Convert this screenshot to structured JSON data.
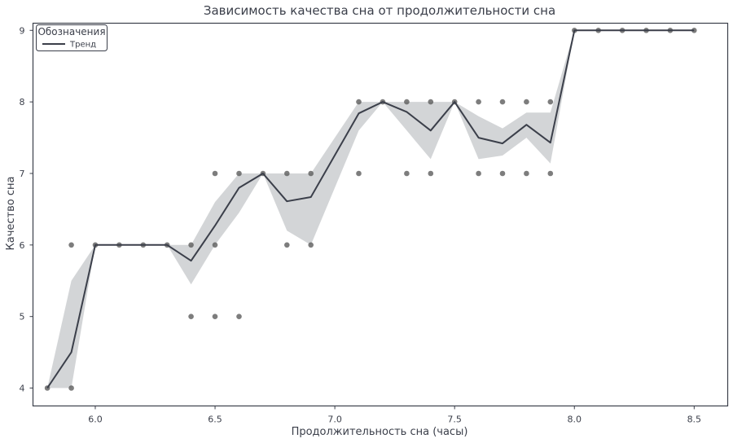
{
  "chart_data": {
    "type": "line",
    "title": "Зависимость качества сна от продолжительности сна",
    "xlabel": "Продолжительность сна (часы)",
    "ylabel": "Качество сна",
    "xlim": [
      5.74,
      8.64
    ],
    "ylim": [
      3.75,
      9.1
    ],
    "xticks": [
      6.0,
      6.5,
      7.0,
      7.5,
      8.0,
      8.5
    ],
    "yticks": [
      4,
      5,
      6,
      7,
      8,
      9
    ],
    "xtick_labels": [
      "6.0",
      "6.5",
      "7.0",
      "7.5",
      "8.0",
      "8.5"
    ],
    "ytick_labels": [
      "4",
      "5",
      "6",
      "7",
      "8",
      "9"
    ],
    "grid": false,
    "legend": {
      "title": "Обозначения",
      "position": "top-left",
      "entries": [
        "Тренд"
      ]
    },
    "colors": {
      "line": "#3b3f4a",
      "band": "#bcbec2",
      "points": "#5d5d5d",
      "frame": "#3b3f4a"
    },
    "series": [
      {
        "name": "Тренд",
        "x": [
          5.8,
          5.9,
          6.0,
          6.1,
          6.2,
          6.3,
          6.4,
          6.5,
          6.6,
          6.7,
          6.8,
          6.9,
          7.1,
          7.2,
          7.3,
          7.4,
          7.5,
          7.6,
          7.7,
          7.8,
          7.9,
          8.0,
          8.1,
          8.2,
          8.3,
          8.4,
          8.5
        ],
        "y": [
          4.0,
          4.5,
          6.0,
          6.0,
          6.0,
          6.0,
          5.78,
          6.27,
          6.8,
          7.0,
          6.61,
          6.67,
          7.84,
          8.0,
          7.86,
          7.6,
          8.0,
          7.5,
          7.42,
          7.68,
          7.43,
          9.0,
          9.0,
          9.0,
          9.0,
          9.0,
          9.0
        ],
        "ci_low": [
          4.0,
          4.0,
          6.0,
          6.0,
          6.0,
          6.0,
          5.45,
          6.0,
          6.45,
          7.0,
          6.2,
          6.0,
          7.6,
          8.0,
          7.6,
          7.2,
          8.0,
          7.2,
          7.25,
          7.5,
          7.14,
          9.0,
          9.0,
          9.0,
          9.0,
          9.0,
          9.0
        ],
        "ci_high": [
          4.0,
          5.5,
          6.0,
          6.0,
          6.0,
          6.0,
          6.0,
          6.6,
          7.0,
          7.0,
          7.0,
          7.0,
          8.0,
          8.0,
          8.0,
          8.0,
          8.0,
          7.8,
          7.63,
          7.85,
          7.85,
          9.0,
          9.0,
          9.0,
          9.0,
          9.0,
          9.0
        ]
      }
    ],
    "points": [
      {
        "x": 5.8,
        "y": 4
      },
      {
        "x": 5.9,
        "y": 4
      },
      {
        "x": 5.9,
        "y": 6
      },
      {
        "x": 6.0,
        "y": 6
      },
      {
        "x": 6.1,
        "y": 6
      },
      {
        "x": 6.2,
        "y": 6
      },
      {
        "x": 6.3,
        "y": 6
      },
      {
        "x": 6.4,
        "y": 6
      },
      {
        "x": 6.4,
        "y": 5
      },
      {
        "x": 6.5,
        "y": 7
      },
      {
        "x": 6.5,
        "y": 6
      },
      {
        "x": 6.5,
        "y": 5
      },
      {
        "x": 6.6,
        "y": 7
      },
      {
        "x": 6.6,
        "y": 5
      },
      {
        "x": 6.7,
        "y": 7
      },
      {
        "x": 6.8,
        "y": 7
      },
      {
        "x": 6.8,
        "y": 6
      },
      {
        "x": 6.9,
        "y": 7
      },
      {
        "x": 6.9,
        "y": 6
      },
      {
        "x": 7.1,
        "y": 8
      },
      {
        "x": 7.1,
        "y": 7
      },
      {
        "x": 7.2,
        "y": 8
      },
      {
        "x": 7.3,
        "y": 8
      },
      {
        "x": 7.3,
        "y": 7
      },
      {
        "x": 7.4,
        "y": 8
      },
      {
        "x": 7.4,
        "y": 7
      },
      {
        "x": 7.5,
        "y": 8
      },
      {
        "x": 7.6,
        "y": 8
      },
      {
        "x": 7.6,
        "y": 7
      },
      {
        "x": 7.7,
        "y": 8
      },
      {
        "x": 7.7,
        "y": 7
      },
      {
        "x": 7.8,
        "y": 8
      },
      {
        "x": 7.8,
        "y": 7
      },
      {
        "x": 7.9,
        "y": 8
      },
      {
        "x": 7.9,
        "y": 7
      },
      {
        "x": 8.0,
        "y": 9
      },
      {
        "x": 8.1,
        "y": 9
      },
      {
        "x": 8.2,
        "y": 9
      },
      {
        "x": 8.3,
        "y": 9
      },
      {
        "x": 8.4,
        "y": 9
      },
      {
        "x": 8.5,
        "y": 9
      }
    ]
  }
}
